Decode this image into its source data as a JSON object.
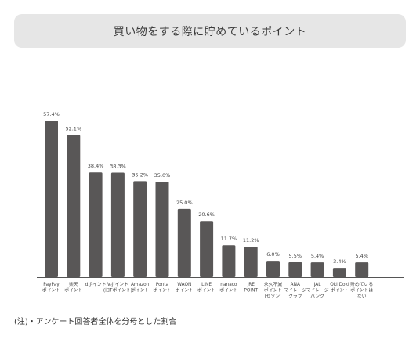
{
  "chart_data": {
    "type": "bar",
    "title": "買い物をする際に貯めているポイント",
    "categories": [
      [
        "PayPay",
        "ポイント"
      ],
      [
        "楽天",
        "ポイント"
      ],
      [
        "dポイント"
      ],
      [
        "Vポイント",
        "(旧Tポイント)"
      ],
      [
        "Amazon",
        "ポイント"
      ],
      [
        "Ponta",
        "ポイント"
      ],
      [
        "WAON",
        "ポイント"
      ],
      [
        "LINE",
        "ポイント"
      ],
      [
        "nanaco",
        "ポイント"
      ],
      [
        "JRE",
        "POINT"
      ],
      [
        "永久不滅",
        "ポイント",
        "(セゾン)"
      ],
      [
        "ANA",
        "マイレージ",
        "クラブ"
      ],
      [
        "JAL",
        "マイレージ",
        "バンク"
      ],
      [
        "Oki Doki",
        "ポイント"
      ],
      [
        "貯めている",
        "ポイントは",
        "ない"
      ]
    ],
    "value_labels": [
      "57.4%",
      "52.1%",
      "38.4%",
      "38.3%",
      "35.2%",
      "35.0%",
      "25.0%",
      "20.6%",
      "11.7%",
      "11.2%",
      "6.0%",
      "5.5%",
      "5.4%",
      "3.4%",
      "5.4%"
    ],
    "values": [
      57.4,
      52.1,
      38.4,
      38.3,
      35.2,
      35.0,
      25.0,
      20.6,
      11.7,
      11.2,
      6.0,
      5.5,
      5.4,
      3.4,
      5.4
    ],
    "ylim": [
      0,
      60
    ],
    "bar_color": "#595757",
    "grid": false,
    "legend": "none"
  },
  "footnote": "(注)・アンケート回答者全体を分母とした割合"
}
